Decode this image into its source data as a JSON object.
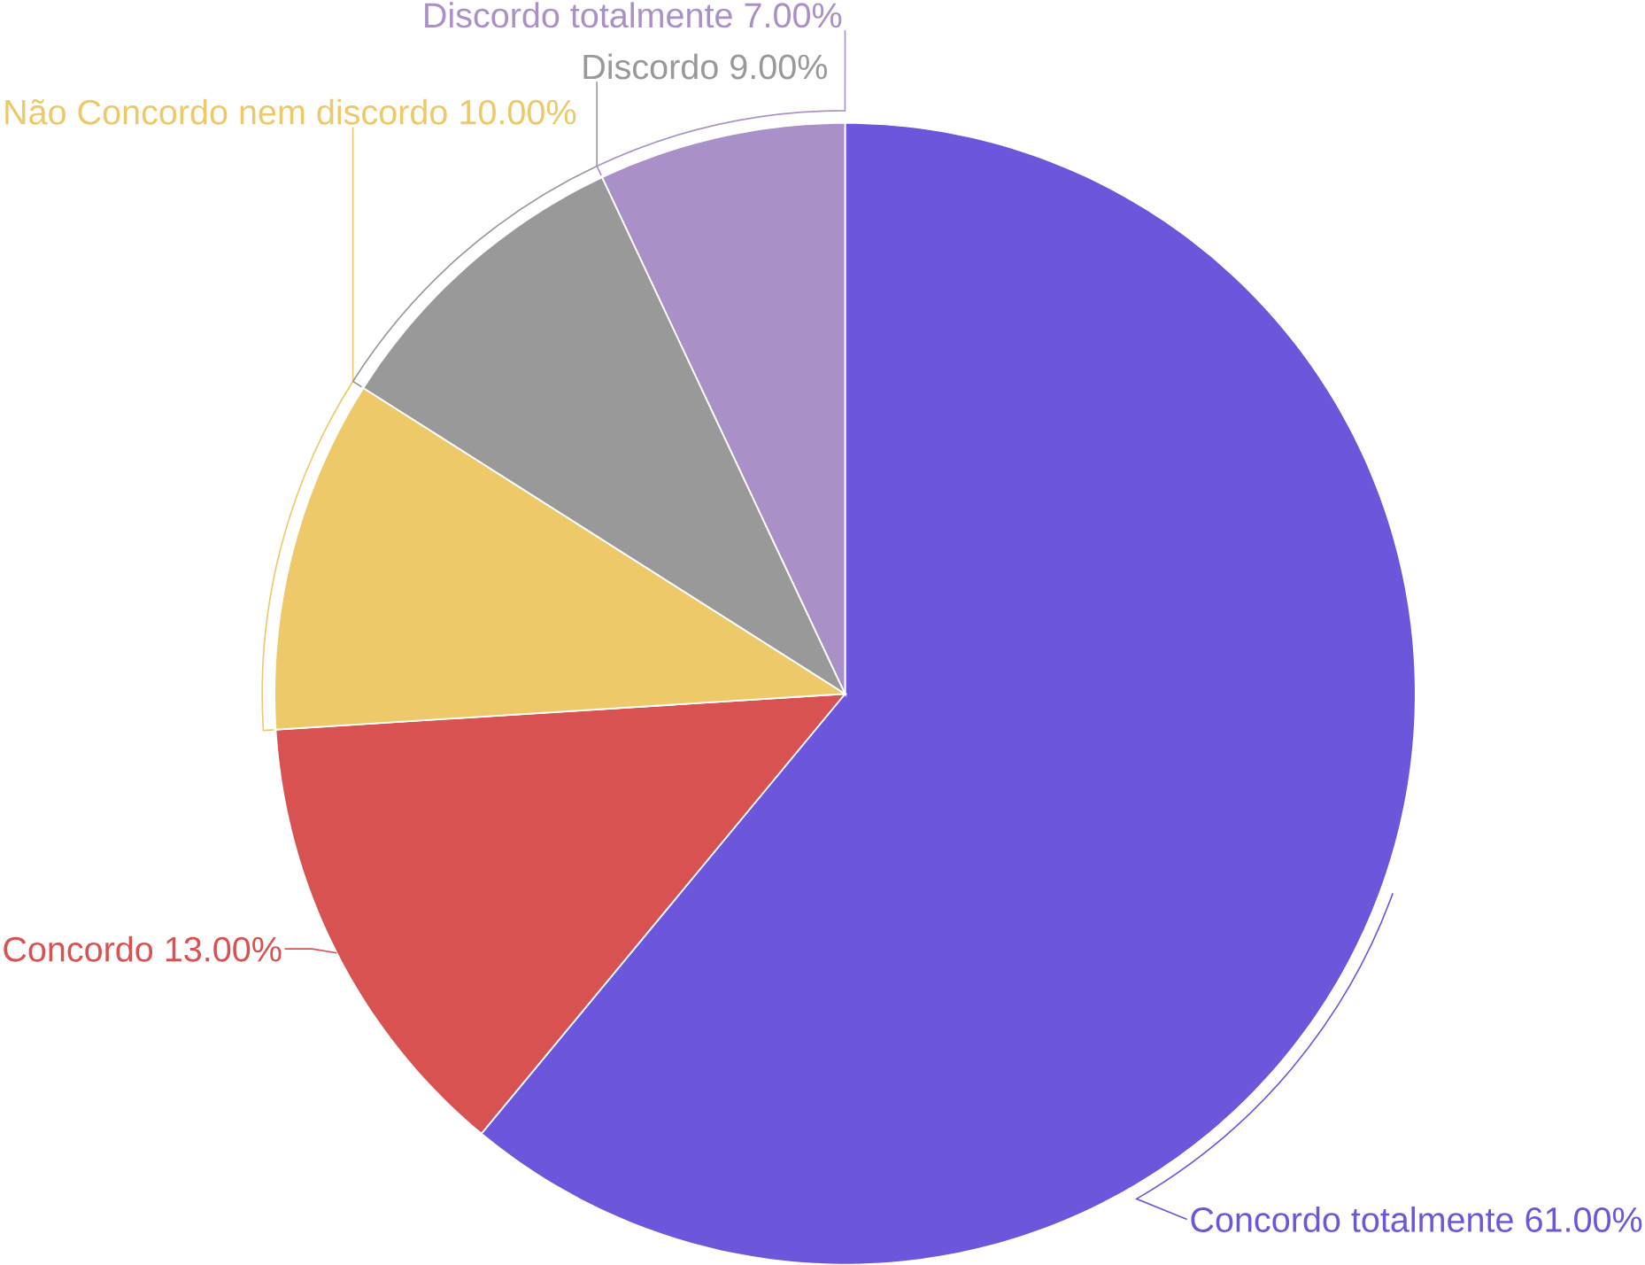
{
  "chart_data": {
    "type": "pie",
    "categories": [
      "Concordo totalmente",
      "Concordo",
      "Não Concordo nem discordo",
      "Discordo",
      "Discordo totalmente"
    ],
    "values": [
      61,
      13,
      10,
      9,
      7
    ],
    "value_labels": [
      "61.00%",
      "13.00%",
      "10.00%",
      "9.00%",
      "7.00%"
    ],
    "colors": [
      "#6c56db",
      "#d95252",
      "#eec96a",
      "#999999",
      "#aa90c8"
    ]
  }
}
